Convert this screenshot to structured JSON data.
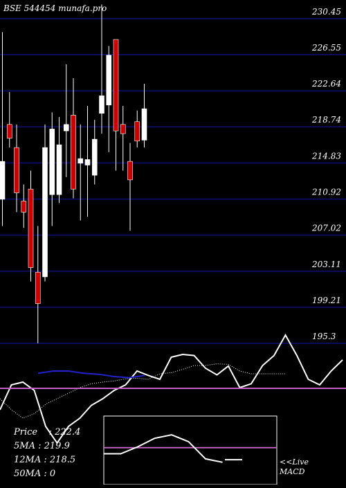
{
  "chart_data": {
    "type": "candlestick",
    "title": "BSE 544454  munafa.pro",
    "y_ticks": [
      "230.45",
      "226.55",
      "222.64",
      "218.74",
      "214.83",
      "210.92",
      "207.02",
      "203.11",
      "199.21",
      "195.3"
    ],
    "ylim": [
      195.3,
      230.45
    ],
    "grid": true,
    "candles": [
      {
        "open": 215.0,
        "close": 210.9,
        "high": 229.0,
        "low": 208.0,
        "color": "white"
      },
      {
        "open": 219.0,
        "close": 217.5,
        "high": 222.5,
        "low": 216.5,
        "color": "red"
      },
      {
        "open": 216.5,
        "close": 211.6,
        "high": 219.0,
        "low": 209.5,
        "color": "red"
      },
      {
        "open": 210.7,
        "close": 209.5,
        "high": 212.5,
        "low": 207.8,
        "color": "red"
      },
      {
        "open": 212.0,
        "close": 203.5,
        "high": 214.0,
        "low": 202.0,
        "color": "red"
      },
      {
        "open": 203.0,
        "close": 199.6,
        "high": 208.0,
        "low": 195.3,
        "color": "red"
      },
      {
        "open": 202.5,
        "close": 216.5,
        "high": 219.0,
        "low": 202.0,
        "color": "white"
      },
      {
        "open": 211.4,
        "close": 218.5,
        "high": 220.3,
        "low": 208.0,
        "color": "white"
      },
      {
        "open": 211.4,
        "close": 216.8,
        "high": 219.8,
        "low": 210.5,
        "color": "white"
      },
      {
        "open": 218.3,
        "close": 219.0,
        "high": 225.5,
        "low": 213.3,
        "color": "white"
      },
      {
        "open": 220.0,
        "close": 212.0,
        "high": 224.0,
        "low": 211.0,
        "color": "red"
      },
      {
        "open": 214.8,
        "close": 215.3,
        "high": 219.0,
        "low": 208.6,
        "color": "white"
      },
      {
        "open": 215.2,
        "close": 214.6,
        "high": 221.0,
        "low": 209.0,
        "color": "white"
      },
      {
        "open": 213.5,
        "close": 217.4,
        "high": 219.5,
        "low": 212.5,
        "color": "white"
      },
      {
        "open": 220.2,
        "close": 222.1,
        "high": 232.0,
        "low": 218.0,
        "color": "white"
      },
      {
        "open": 221.1,
        "close": 226.5,
        "high": 227.5,
        "low": 216.0,
        "color": "white"
      },
      {
        "open": 228.2,
        "close": 218.3,
        "high": 228.2,
        "low": 214.0,
        "color": "red"
      },
      {
        "open": 218.0,
        "close": 219.0,
        "high": 221.0,
        "low": 214.0,
        "color": "red"
      },
      {
        "open": 215.0,
        "close": 213.0,
        "high": 217.0,
        "low": 207.5,
        "color": "red"
      },
      {
        "open": 217.2,
        "close": 219.3,
        "high": 220.5,
        "low": 216.5,
        "color": "red"
      },
      {
        "open": 217.3,
        "close": 220.7,
        "high": 223.4,
        "low": 216.5,
        "color": "white"
      }
    ],
    "ma_series": [
      {
        "color": "#ffffff",
        "style": "solid",
        "values": [
          212.0,
          216.5,
          217.0,
          215.5,
          209.0,
          206.0,
          209.0,
          210.5,
          212.8,
          214.0,
          215.5,
          216.5,
          219.0,
          218.2,
          217.5,
          221.5,
          222.0,
          221.8,
          219.5,
          218.3,
          219.9,
          216.0,
          216.7,
          220.0,
          221.8,
          225.5,
          221.8,
          217.5,
          216.5,
          219.0,
          221.0
        ]
      },
      {
        "color": "#ffffff",
        "style": "dotted",
        "values": [
          214.0,
          212.0,
          210.5,
          211.3,
          213.0,
          214.0,
          215.0,
          216.0,
          216.7,
          217.0,
          217.2,
          217.6,
          217.7,
          217.5,
          218.5,
          218.7,
          219.3,
          220.0,
          220.0,
          220.3,
          220.2,
          219.0,
          218.5,
          218.5,
          218.5,
          218.5
        ]
      },
      {
        "color": "#2222cc",
        "style": "solid",
        "values": [
          218.6,
          219.0,
          219.0,
          218.6,
          218.4,
          218.0,
          217.8,
          218.2
        ]
      }
    ],
    "macd": {
      "label": "<<Live MACD",
      "macd_line": [
        0.2,
        0.2,
        1.0,
        2.0,
        2.4,
        1.6,
        -0.4,
        -0.8
      ],
      "signal_line": [
        0.9
      ],
      "ylim": [
        -3.4,
        4.6
      ]
    },
    "stats": [
      {
        "label": "Price",
        "value": "222.4"
      },
      {
        "label": "5MA",
        "value": "219.9"
      },
      {
        "label": "12MA",
        "value": "218.5"
      },
      {
        "label": "50MA",
        "value": "0"
      }
    ],
    "colors": {
      "grid": "#0c0c5a",
      "up": "#ffffff",
      "down": "#cc0000",
      "zero_line": "#c060c0",
      "ma_blue": "#2222cc"
    }
  }
}
